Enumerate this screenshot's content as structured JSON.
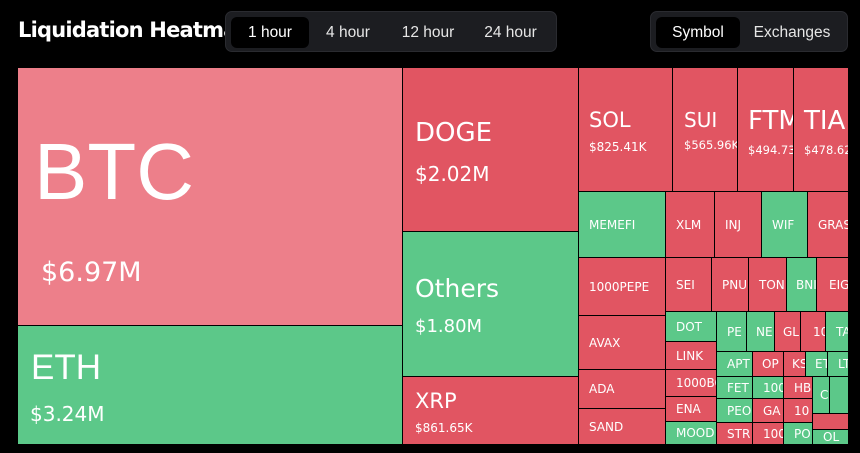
{
  "title": "Liquidation Heatmap",
  "time_tabs": [
    {
      "label": "1 hour",
      "active": true
    },
    {
      "label": "4 hour",
      "active": false
    },
    {
      "label": "12 hour",
      "active": false
    },
    {
      "label": "24 hour",
      "active": false
    }
  ],
  "view_tabs": [
    {
      "label": "Symbol",
      "active": true
    },
    {
      "label": "Exchanges",
      "active": false
    }
  ],
  "colors": {
    "long": "#5cc889",
    "short": "#e15562",
    "highlight": "#ed7f8a"
  },
  "tiles": {
    "BTC": {
      "symbol": "BTC",
      "value": "$6.97M"
    },
    "ETH": {
      "symbol": "ETH",
      "value": "$3.24M"
    },
    "DOGE": {
      "symbol": "DOGE",
      "value": "$2.02M"
    },
    "Others": {
      "symbol": "Others",
      "value": "$1.80M"
    },
    "XRP": {
      "symbol": "XRP",
      "value": "$861.65K"
    },
    "SOL": {
      "symbol": "SOL",
      "value": "$825.41K"
    },
    "SUI": {
      "symbol": "SUI",
      "value": "$565.96K"
    },
    "FTM": {
      "symbol": "FTM",
      "value": "$494.73"
    },
    "TIA": {
      "symbol": "TIA",
      "value": "$478.62"
    },
    "MEMEFI": {
      "symbol": "MEMEFI"
    },
    "XLM": {
      "symbol": "XLM"
    },
    "INJ": {
      "symbol": "INJ"
    },
    "WIF": {
      "symbol": "WIF"
    },
    "GRASS": {
      "symbol": "GRAS"
    },
    "1000PEPE": {
      "symbol": "1000PEPE"
    },
    "SEI": {
      "symbol": "SEI"
    },
    "PNUT": {
      "symbol": "PNU"
    },
    "TON": {
      "symbol": "TON"
    },
    "BNB": {
      "symbol": "BNI"
    },
    "EIGEN": {
      "symbol": "EIG"
    },
    "AVAX": {
      "symbol": "AVAX"
    },
    "DOT": {
      "symbol": "DOT"
    },
    "PE": {
      "symbol": "PE"
    },
    "NE": {
      "symbol": "NE"
    },
    "GL": {
      "symbol": "GL"
    },
    "10": {
      "symbol": "10"
    },
    "TA": {
      "symbol": "TA"
    },
    "LINK": {
      "symbol": "LINK"
    },
    "APT": {
      "symbol": "APT"
    },
    "OP": {
      "symbol": "OP"
    },
    "KS": {
      "symbol": "KS"
    },
    "ET": {
      "symbol": "ET"
    },
    "LT": {
      "symbol": "LT"
    },
    "ADA": {
      "symbol": "ADA"
    },
    "1000BONK": {
      "symbol": "1000BC"
    },
    "FET": {
      "symbol": "FET"
    },
    "100A": {
      "symbol": "100"
    },
    "HB": {
      "symbol": "HB"
    },
    "C": {
      "symbol": "C"
    },
    "SAND": {
      "symbol": "SAND"
    },
    "ENA": {
      "symbol": "ENA"
    },
    "PEO": {
      "symbol": "PEO"
    },
    "GA": {
      "symbol": "GA"
    },
    "10B": {
      "symbol": "10"
    },
    "MOODENG": {
      "symbol": "MOOD"
    },
    "STR": {
      "symbol": "STR"
    },
    "100C": {
      "symbol": "100"
    },
    "PO": {
      "symbol": "PO"
    },
    "OL": {
      "symbol": "OL"
    }
  }
}
